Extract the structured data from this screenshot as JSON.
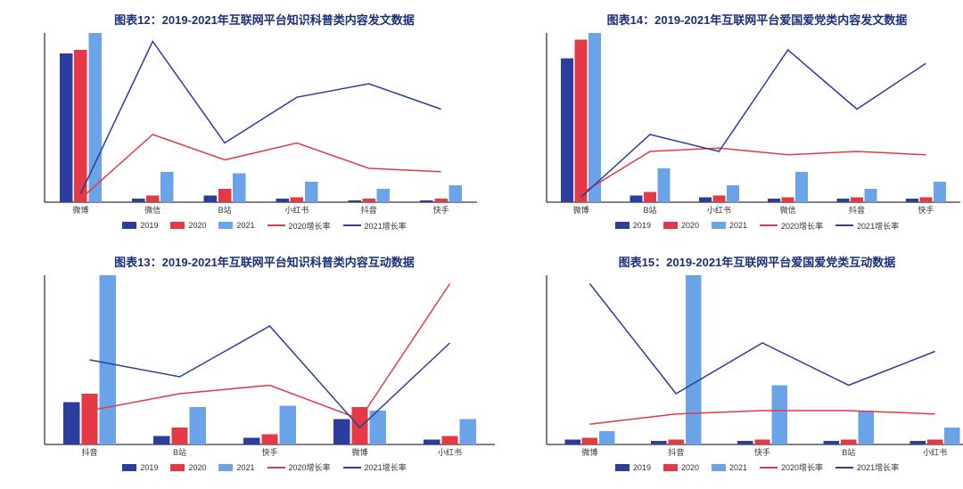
{
  "colors": {
    "series2019": "#2b3e9e",
    "series2020": "#e63946",
    "series2021": "#6ba3e8",
    "growth2020": "#e63946",
    "growth2021": "#2b3e9e",
    "axis": "#000000",
    "title": "#1c2f7a"
  },
  "legend_labels": {
    "y2019": "2019",
    "y2020": "2020",
    "y2021": "2021",
    "g2020": "2020增长率",
    "g2021": "2021增长率"
  },
  "chart_style": {
    "bar_width": 0.18,
    "bar_gap": 0.02,
    "line_width": 1.5,
    "title_fontsize": 13,
    "axis_label_fontsize": 9,
    "legend_fontsize": 9
  },
  "charts": [
    {
      "id": "chart12",
      "title": "图表12：2019-2021年互联网平台知识科普类内容发文数据",
      "categories": [
        "微博",
        "微信",
        "B站",
        "小红书",
        "抖音",
        "快手"
      ],
      "bars": {
        "2019": [
          88,
          2,
          4,
          2,
          1,
          1
        ],
        "2020": [
          90,
          4,
          8,
          3,
          2,
          2
        ],
        "2021": [
          100,
          18,
          17,
          12,
          8,
          10
        ]
      },
      "lines": {
        "growth2020": [
          2,
          40,
          25,
          35,
          20,
          18
        ],
        "growth2021": [
          5,
          95,
          35,
          62,
          70,
          55
        ]
      },
      "bars_max": 100,
      "lines_max": 100
    },
    {
      "id": "chart14",
      "title": "图表14：2019-2021年互联网平台爱国爱党类内容发文数据",
      "categories": [
        "微博",
        "B站",
        "小红书",
        "微信",
        "抖音",
        "快手"
      ],
      "bars": {
        "2019": [
          85,
          4,
          3,
          2,
          2,
          2
        ],
        "2020": [
          96,
          6,
          4,
          3,
          3,
          3
        ],
        "2021": [
          100,
          20,
          10,
          18,
          8,
          12
        ]
      },
      "lines": {
        "growth2020": [
          5,
          30,
          32,
          28,
          30,
          28
        ],
        "growth2021": [
          3,
          40,
          30,
          90,
          55,
          82
        ]
      },
      "bars_max": 100,
      "lines_max": 100
    },
    {
      "id": "chart13",
      "title": "图表13：2019-2021年互联网平台知识科普类内容互动数据",
      "categories": [
        "抖音",
        "B站",
        "快手",
        "微博",
        "小红书"
      ],
      "bars": {
        "2019": [
          25,
          5,
          4,
          15,
          3
        ],
        "2020": [
          30,
          10,
          6,
          22,
          5
        ],
        "2021": [
          100,
          22,
          23,
          20,
          15
        ]
      },
      "lines": {
        "growth2020": [
          20,
          30,
          35,
          15,
          95
        ],
        "growth2021": [
          50,
          40,
          70,
          10,
          60
        ]
      },
      "bars_max": 100,
      "lines_max": 100
    },
    {
      "id": "chart15",
      "title": "图表15：2019-2021年互联网平台爱国爱党类互动数据",
      "categories": [
        "微博",
        "抖音",
        "快手",
        "B站",
        "小红书"
      ],
      "bars": {
        "2019": [
          3,
          2,
          2,
          2,
          2
        ],
        "2020": [
          4,
          3,
          3,
          3,
          3
        ],
        "2021": [
          8,
          100,
          35,
          20,
          10
        ]
      },
      "lines": {
        "growth2020": [
          12,
          18,
          20,
          20,
          18
        ],
        "growth2021": [
          95,
          30,
          60,
          35,
          55
        ]
      },
      "bars_max": 100,
      "lines_max": 100
    }
  ]
}
